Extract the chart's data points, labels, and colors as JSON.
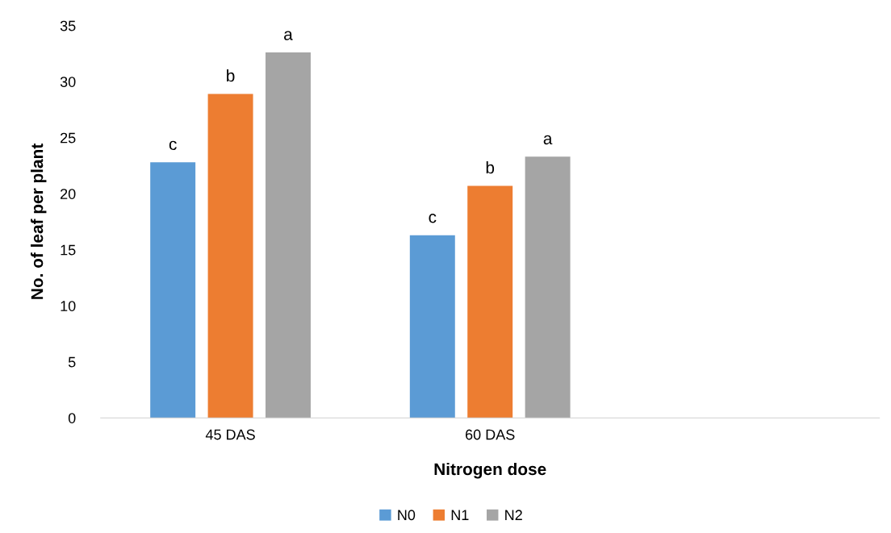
{
  "chart_data": {
    "type": "bar",
    "xlabel": "Nitrogen dose",
    "ylabel": "No. of leaf per plant",
    "categories": [
      "45 DAS",
      "60 DAS",
      null
    ],
    "series": [
      {
        "name": "N0",
        "color": "#5b9bd5",
        "values": [
          22.8,
          16.3,
          null
        ],
        "value_labels": [
          "c",
          "c",
          null
        ]
      },
      {
        "name": "N1",
        "color": "#ed7d31",
        "values": [
          28.9,
          20.7,
          null
        ],
        "value_labels": [
          "b",
          "b",
          null
        ]
      },
      {
        "name": "N2",
        "color": "#a5a5a5",
        "values": [
          32.6,
          23.3,
          null
        ],
        "value_labels": [
          "a",
          "a",
          null
        ]
      }
    ],
    "ylim": [
      0,
      35
    ],
    "yticks": [
      0,
      5,
      10,
      15,
      20,
      25,
      30,
      35
    ],
    "grid": false,
    "legend": "bottom"
  }
}
